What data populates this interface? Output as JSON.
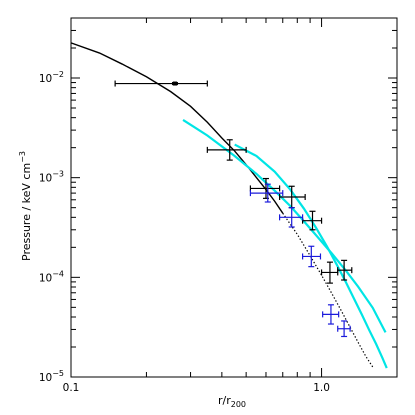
{
  "chart_data": {
    "type": "scatter",
    "title": "",
    "xlabel_main": "r/r",
    "xlabel_sub": "200",
    "ylabel_main": "Pressure / keV cm",
    "ylabel_sup": "−3",
    "xscale": "log",
    "yscale": "log",
    "xlim": [
      0.1,
      2.0
    ],
    "ylim": [
      1e-05,
      0.04
    ],
    "grid": false,
    "x_ticks": [
      {
        "value": 0.1,
        "label": "0.1"
      },
      {
        "value": 1.0,
        "label": "1.0"
      }
    ],
    "y_ticks": [
      {
        "value": 1e-05,
        "base": "10",
        "exp": "−5"
      },
      {
        "value": 0.0001,
        "base": "10",
        "exp": "−4"
      },
      {
        "value": 0.001,
        "base": "10",
        "exp": "−3"
      },
      {
        "value": 0.01,
        "base": "10",
        "exp": "−2"
      }
    ],
    "series": [
      {
        "kind": "line",
        "color": "#000000",
        "style": "solid",
        "points": [
          [
            0.1,
            0.0225
          ],
          [
            0.13,
            0.0178
          ],
          [
            0.16,
            0.0138
          ],
          [
            0.2,
            0.0103
          ],
          [
            0.25,
            0.0073
          ],
          [
            0.3,
            0.0052
          ],
          [
            0.35,
            0.0036
          ],
          [
            0.4,
            0.0025
          ],
          [
            0.45,
            0.00185
          ],
          [
            0.5,
            0.00135
          ],
          [
            0.55,
            0.001
          ],
          [
            0.6,
            0.00076
          ],
          [
            0.65,
            0.00058
          ],
          [
            0.7,
            0.00044
          ]
        ]
      },
      {
        "kind": "line",
        "color": "#000000",
        "style": "dotted",
        "points": [
          [
            0.7,
            0.00044
          ],
          [
            0.8,
            0.00027
          ],
          [
            0.9,
            0.000165
          ],
          [
            1.0,
            0.000105
          ],
          [
            1.1,
            6.85e-05
          ],
          [
            1.2,
            4.6e-05
          ],
          [
            1.3,
            3.15e-05
          ],
          [
            1.4,
            2.22e-05
          ],
          [
            1.5,
            1.62e-05
          ],
          [
            1.6,
            1.26e-05
          ]
        ]
      },
      {
        "kind": "line",
        "color": "#00e5e5",
        "style": "solid",
        "points": [
          [
            0.28,
            0.0038
          ],
          [
            0.35,
            0.00265
          ],
          [
            0.45,
            0.00165
          ],
          [
            0.55,
            0.00109
          ],
          [
            0.65,
            0.00074
          ],
          [
            0.75,
            0.00052
          ],
          [
            0.85,
            0.000365
          ],
          [
            0.95,
            0.000265
          ],
          [
            1.1,
            0.000173
          ],
          [
            1.25,
            0.000117
          ],
          [
            1.4,
            8.05e-05
          ],
          [
            1.6,
            4.95e-05
          ],
          [
            1.8,
            2.8e-05
          ]
        ]
      },
      {
        "kind": "line",
        "color": "#00e5e5",
        "style": "solid",
        "points": [
          [
            0.45,
            0.00215
          ],
          [
            0.55,
            0.00165
          ],
          [
            0.65,
            0.00115
          ],
          [
            0.75,
            0.00076
          ],
          [
            0.85,
            0.00049
          ],
          [
            0.95,
            0.000315
          ],
          [
            1.05,
            0.000205
          ],
          [
            1.15,
            0.000134
          ],
          [
            1.25,
            8.95e-05
          ],
          [
            1.35,
            6.05e-05
          ],
          [
            1.45,
            4.2e-05
          ],
          [
            1.55,
            2.95e-05
          ],
          [
            1.65,
            2.15e-05
          ],
          [
            1.75,
            1.55e-05
          ],
          [
            1.82,
            1.23e-05
          ]
        ]
      },
      {
        "kind": "points",
        "color": "#000000",
        "points": [
          {
            "x": 0.26,
            "y": 0.0088,
            "xlo": 0.15,
            "xhi": 0.35,
            "ylo": 0.0086,
            "yhi": 0.009,
            "marker": true
          },
          {
            "x": 0.43,
            "y": 0.0019,
            "xlo": 0.35,
            "xhi": 0.5,
            "ylo": 0.0015,
            "yhi": 0.0024
          },
          {
            "x": 0.6,
            "y": 0.00078,
            "xlo": 0.52,
            "xhi": 0.68,
            "ylo": 0.00062,
            "yhi": 0.00098
          },
          {
            "x": 0.76,
            "y": 0.00064,
            "xlo": 0.68,
            "xhi": 0.86,
            "ylo": 0.0005,
            "yhi": 0.00082
          },
          {
            "x": 0.92,
            "y": 0.00037,
            "xlo": 0.84,
            "xhi": 1.0,
            "ylo": 0.0003,
            "yhi": 0.00046
          },
          {
            "x": 1.08,
            "y": 0.000112,
            "xlo": 1.0,
            "xhi": 1.16,
            "ylo": 8.75e-05,
            "yhi": 0.000142
          },
          {
            "x": 1.23,
            "y": 0.000118,
            "xlo": 1.16,
            "xhi": 1.32,
            "ylo": 9.4e-05,
            "yhi": 0.000148
          }
        ]
      },
      {
        "kind": "points",
        "color": "#1a1adb",
        "points": [
          {
            "x": 0.61,
            "y": 0.0007,
            "xlo": 0.52,
            "xhi": 0.7,
            "ylo": 0.00057,
            "yhi": 0.00086
          },
          {
            "x": 0.76,
            "y": 0.0004,
            "xlo": 0.68,
            "xhi": 0.84,
            "ylo": 0.00032,
            "yhi": 0.0005
          },
          {
            "x": 0.91,
            "y": 0.000162,
            "xlo": 0.84,
            "xhi": 0.99,
            "ylo": 0.000128,
            "yhi": 0.000205
          },
          {
            "x": 1.09,
            "y": 4.25e-05,
            "xlo": 1.01,
            "xhi": 1.17,
            "ylo": 3.4e-05,
            "yhi": 5.3e-05
          },
          {
            "x": 1.23,
            "y": 3.05e-05,
            "xlo": 1.16,
            "xhi": 1.3,
            "ylo": 2.55e-05,
            "yhi": 3.65e-05
          }
        ]
      }
    ]
  }
}
